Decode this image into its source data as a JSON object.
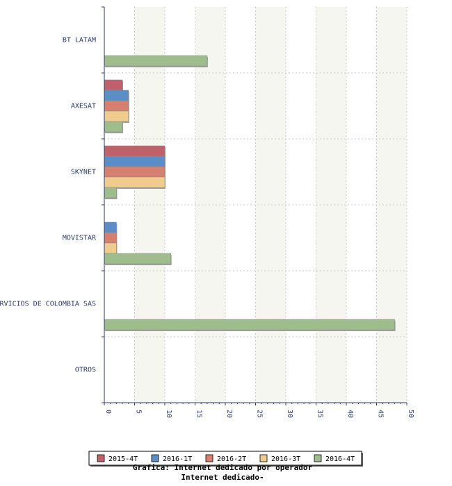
{
  "chart_data": {
    "type": "bar",
    "orientation": "horizontal",
    "categories": [
      "BT LATAM",
      "AXESAT",
      "SKYNET",
      "MOVISTAR",
      "RVICIOS DE COLOMBIA SAS",
      "OTROS"
    ],
    "series": [
      {
        "name": "2015-4T",
        "color": "#c0606a",
        "values": [
          0,
          3,
          10,
          0,
          0,
          0
        ]
      },
      {
        "name": "2016-1T",
        "color": "#5b8ec8",
        "values": [
          0,
          4,
          10,
          2,
          0,
          0
        ]
      },
      {
        "name": "2016-2T",
        "color": "#d5806e",
        "values": [
          0,
          4,
          10,
          2,
          0,
          0
        ]
      },
      {
        "name": "2016-3T",
        "color": "#f0cc8c",
        "values": [
          0,
          4,
          10,
          2,
          0,
          0
        ]
      },
      {
        "name": "2016-4T",
        "color": "#9fbd8c",
        "values": [
          17,
          3,
          2,
          11,
          48,
          0
        ]
      }
    ],
    "xlim": [
      0,
      50
    ],
    "x_ticks": [
      "0",
      "5",
      "10",
      "15",
      "20",
      "25",
      "30",
      "35",
      "40",
      "45",
      "50"
    ],
    "grid": true,
    "legend_position": "bottom",
    "footer_lines": [
      "Grafica: Internet dedicado por operador",
      "Internet dedicado-"
    ]
  }
}
